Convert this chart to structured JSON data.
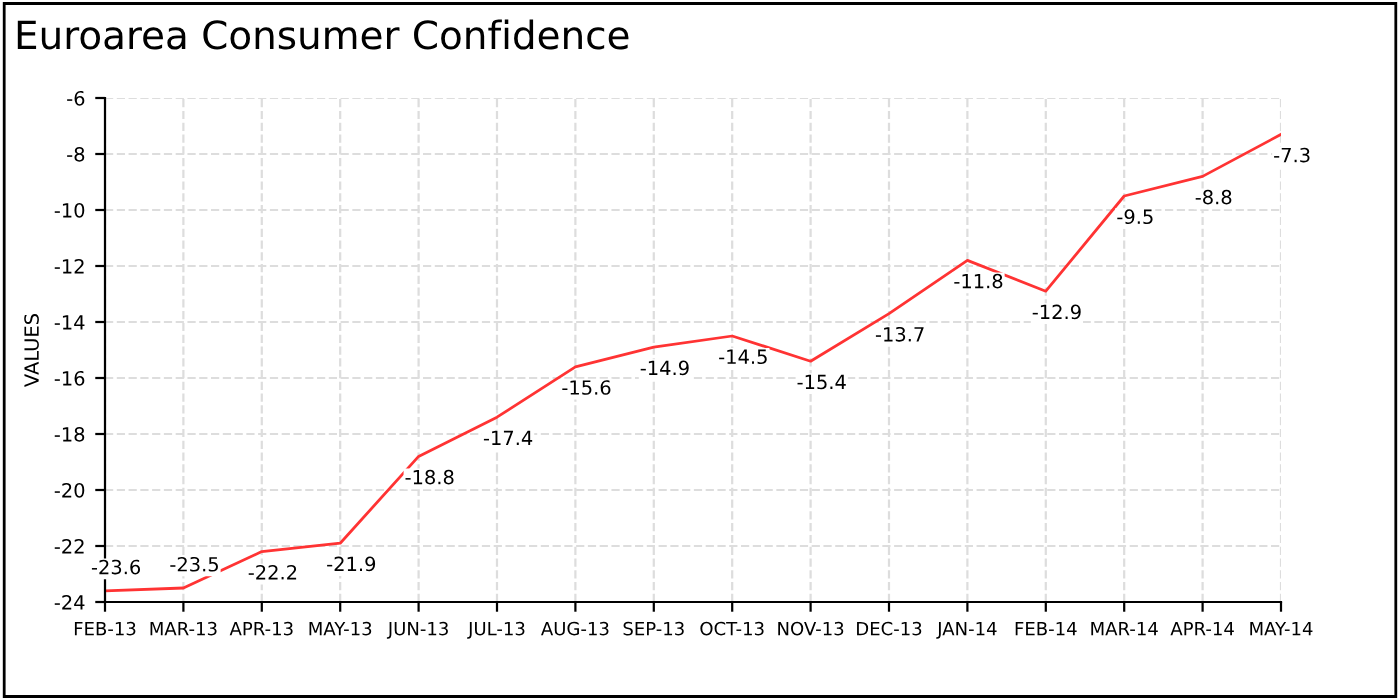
{
  "chart_data": {
    "type": "line",
    "title": "Euroarea Consumer Confidence",
    "ylabel": "VALUES",
    "categories": [
      "FEB-13",
      "MAR-13",
      "APR-13",
      "MAY-13",
      "JUN-13",
      "JUL-13",
      "AUG-13",
      "SEP-13",
      "OCT-13",
      "NOV-13",
      "DEC-13",
      "JAN-14",
      "FEB-14",
      "MAR-14",
      "APR-14",
      "MAY-14"
    ],
    "series": [
      {
        "color": "#ff3333",
        "values": [
          -23.6,
          -23.5,
          -22.2,
          -21.9,
          -18.8,
          -17.4,
          -15.6,
          -14.9,
          -14.5,
          -15.4,
          -13.7,
          -11.8,
          -12.9,
          -9.5,
          -8.8,
          -7.3
        ]
      }
    ],
    "ylim": [
      -24,
      -6
    ],
    "yticks": [
      -24,
      -22,
      -20,
      -18,
      -16,
      -14,
      -12,
      -10,
      -8,
      -6
    ],
    "grid": true,
    "data_labels": true,
    "marker": "none",
    "line_style": "solid"
  }
}
